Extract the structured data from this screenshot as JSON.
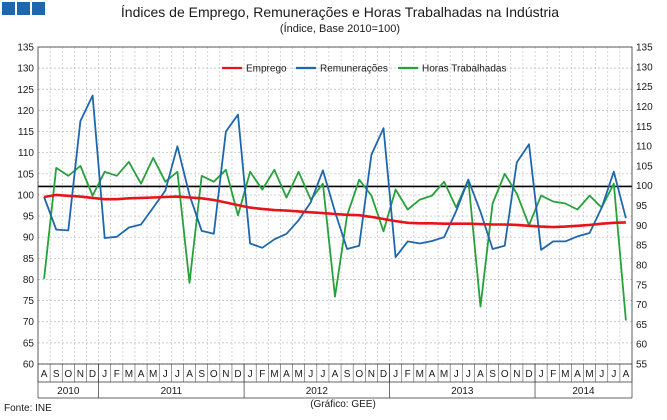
{
  "chart_data": {
    "type": "line",
    "title": "Índices de Emprego, Remunerações e Horas Trabalhadas na Indústria",
    "subtitle": "(Índice, Base 2010=100)",
    "source": "Fonte: INE",
    "credit": "(Gráfico: GEE)",
    "ylim": [
      60,
      135
    ],
    "yticks": [
      60,
      65,
      70,
      75,
      80,
      85,
      90,
      95,
      100,
      105,
      110,
      115,
      120,
      125,
      130,
      135
    ],
    "ylim_right": [
      55,
      135
    ],
    "yticks_right": [
      55,
      60,
      65,
      70,
      75,
      80,
      85,
      90,
      95,
      100,
      105,
      110,
      115,
      120,
      125,
      130,
      135
    ],
    "reference_line": 102,
    "x_labels": [
      "A",
      "S",
      "O",
      "N",
      "D",
      "J",
      "F",
      "M",
      "A",
      "M",
      "J",
      "J",
      "A",
      "S",
      "O",
      "N",
      "D",
      "J",
      "F",
      "M",
      "A",
      "M",
      "J",
      "J",
      "A",
      "S",
      "O",
      "N",
      "D",
      "J",
      "F",
      "M",
      "A",
      "M",
      "J",
      "J",
      "A",
      "S",
      "O",
      "N",
      "D",
      "J",
      "F",
      "M",
      "A",
      "M",
      "J",
      "J",
      "A"
    ],
    "years": [
      {
        "label": "2010",
        "start": 0,
        "end": 4
      },
      {
        "label": "2011",
        "start": 5,
        "end": 16
      },
      {
        "label": "2012",
        "start": 17,
        "end": 28
      },
      {
        "label": "2013",
        "start": 29,
        "end": 40
      },
      {
        "label": "2014",
        "start": 41,
        "end": 48
      }
    ],
    "series": [
      {
        "name": "Emprego",
        "color": "#e8141b",
        "axis": "left",
        "values": [
          99.5,
          100,
          99.8,
          99.6,
          99.3,
          99,
          99,
          99.2,
          99.3,
          99.4,
          99.5,
          99.6,
          99.4,
          99.2,
          98.8,
          98.2,
          97.6,
          97,
          96.7,
          96.4,
          96.3,
          96.1,
          95.9,
          95.7,
          95.5,
          95.3,
          95.2,
          94.8,
          94.3,
          93.8,
          93.4,
          93.3,
          93.3,
          93.2,
          93.2,
          93.2,
          93.1,
          93,
          93,
          92.9,
          92.7,
          92.5,
          92.4,
          92.5,
          92.7,
          92.9,
          93.2,
          93.4,
          93.5
        ]
      },
      {
        "name": "Remunerações",
        "color": "#1f67ad",
        "axis": "left",
        "values": [
          99.5,
          91.8,
          91.6,
          117.5,
          123.5,
          89.8,
          90.1,
          92.3,
          93,
          97,
          101,
          111.5,
          100,
          91.5,
          90.8,
          115,
          119,
          88.5,
          87.5,
          89.5,
          90.8,
          94,
          98.3,
          105.8,
          96,
          87.2,
          88,
          109.5,
          115.8,
          85.3,
          89,
          88.5,
          89.1,
          90,
          96.2,
          103.6,
          96,
          87.2,
          88,
          107.7,
          112,
          87,
          89,
          89,
          90.2,
          91,
          97,
          105.5,
          94.5
        ]
      },
      {
        "name": "Horas Trabalhadas",
        "color": "#26a13c",
        "axis": "right",
        "values": [
          76.5,
          104.5,
          102.5,
          105,
          97.5,
          103.5,
          102.5,
          106,
          100.5,
          107,
          101,
          103.5,
          75.5,
          102.5,
          101,
          104,
          92.5,
          103.5,
          99,
          104,
          97,
          103.5,
          96.5,
          100.5,
          72,
          92.5,
          101.5,
          97.5,
          88.5,
          99,
          94,
          96.5,
          97.5,
          101,
          94.5,
          101.5,
          69.5,
          95.5,
          103,
          98,
          90,
          97.5,
          96,
          95.5,
          94,
          97.5,
          94.5,
          100.5,
          66
        ]
      }
    ],
    "legend": [
      "Emprego",
      "Remunerações",
      "Horas Trabalhadas"
    ]
  },
  "logo": {
    "color": "#1f67ad",
    "squares": 3
  }
}
